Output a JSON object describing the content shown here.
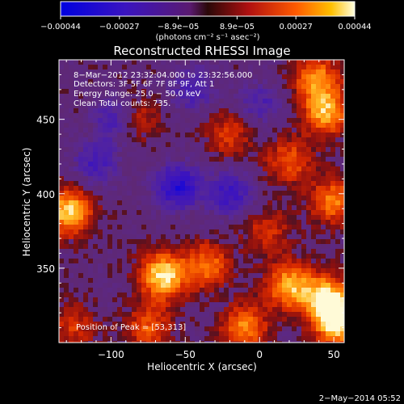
{
  "chart_data": {
    "type": "heatmap",
    "title": "Reconstructed RHESSI Image",
    "xlabel": "Heliocentric X (arcsec)",
    "ylabel": "Heliocentric Y (arcsec)",
    "xlim": [
      -135,
      57
    ],
    "ylim": [
      300,
      490
    ],
    "x_ticks": [
      -100,
      -50,
      0,
      50
    ],
    "y_ticks": [
      350,
      400,
      450
    ],
    "x_tick_labels": [
      "−100",
      "−50",
      "0",
      "50"
    ],
    "y_tick_labels": [
      "350",
      "400",
      "450"
    ],
    "colorbar": {
      "min": -0.00044,
      "max": 0.00044,
      "tick_labels": [
        "−0.00044",
        "−0.00027",
        "−8.9e−05",
        "8.9e−05",
        "0.00027",
        "0.00044"
      ],
      "unit_label": "(photons cm⁻² s⁻¹ asec⁻²)"
    },
    "annotations": {
      "time_range": "8−Mar−2012 23:32:04.000 to 23:32:56.000",
      "detectors": "Detectors: 3F 5F 6F 7F 8F 9F, Att 1",
      "energy": "Energy Range: 25.0 − 50.0 keV",
      "clean": "Clean    Total counts: 735.",
      "peak": "Position of Peak = [53,313]"
    },
    "footer_date": "2−May−2014 05:52",
    "hot_regions": [
      {
        "x": 45,
        "y": 455,
        "v": 0.00036
      },
      {
        "x": 38,
        "y": 478,
        "v": 0.0003
      },
      {
        "x": -128,
        "y": 388,
        "v": 0.00042
      },
      {
        "x": -85,
        "y": 450,
        "v": 0.00026
      },
      {
        "x": -20,
        "y": 440,
        "v": 0.0002
      },
      {
        "x": 20,
        "y": 422,
        "v": 0.00024
      },
      {
        "x": 50,
        "y": 395,
        "v": 0.0003
      },
      {
        "x": 5,
        "y": 375,
        "v": 0.00018
      },
      {
        "x": -65,
        "y": 345,
        "v": 0.00044
      },
      {
        "x": -35,
        "y": 352,
        "v": 0.00028
      },
      {
        "x": 20,
        "y": 338,
        "v": 0.00036
      },
      {
        "x": 45,
        "y": 330,
        "v": 0.0004
      },
      {
        "x": 53,
        "y": 313,
        "v": 0.00044
      },
      {
        "x": -10,
        "y": 310,
        "v": 0.0003
      },
      {
        "x": -75,
        "y": 310,
        "v": 0.00024
      },
      {
        "x": -125,
        "y": 310,
        "v": 0.00018
      }
    ],
    "cold_regions": [
      {
        "x": -95,
        "y": 450,
        "v": -0.0003
      },
      {
        "x": -55,
        "y": 405,
        "v": -0.00034
      },
      {
        "x": -20,
        "y": 400,
        "v": -0.00026
      },
      {
        "x": -110,
        "y": 420,
        "v": -0.00022
      },
      {
        "x": -45,
        "y": 470,
        "v": -0.0002
      },
      {
        "x": 0,
        "y": 460,
        "v": -0.00018
      }
    ]
  }
}
